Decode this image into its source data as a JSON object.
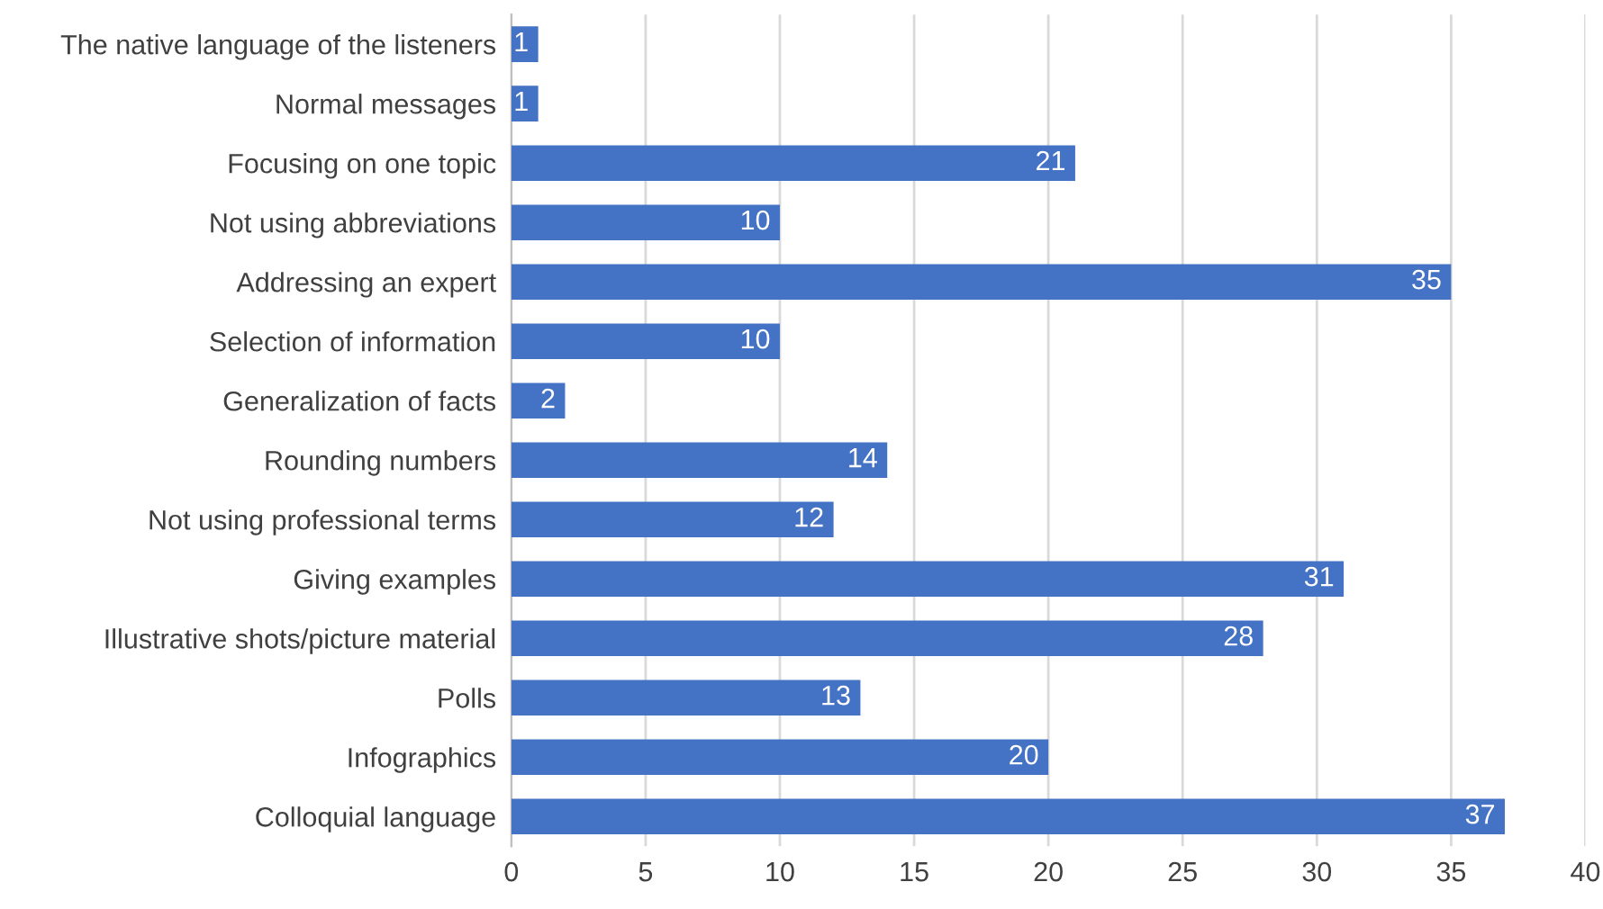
{
  "chart_data": {
    "type": "bar",
    "orientation": "horizontal",
    "categories": [
      "The native language of the listeners",
      "Normal messages",
      "Focusing on one topic",
      "Not using abbreviations",
      "Addressing an expert",
      "Selection of information",
      "Generalization of facts",
      "Rounding numbers",
      "Not using professional terms",
      "Giving examples",
      "Illustrative shots/picture material",
      "Polls",
      "Infographics",
      "Colloquial language"
    ],
    "values": [
      1,
      1,
      21,
      10,
      35,
      10,
      2,
      14,
      12,
      31,
      28,
      13,
      20,
      37
    ],
    "color": "#4472c4",
    "xlim": [
      0,
      40
    ],
    "xticks": [
      0,
      5,
      10,
      15,
      20,
      25,
      30,
      35,
      40
    ],
    "grid": "x",
    "data_labels": true
  }
}
